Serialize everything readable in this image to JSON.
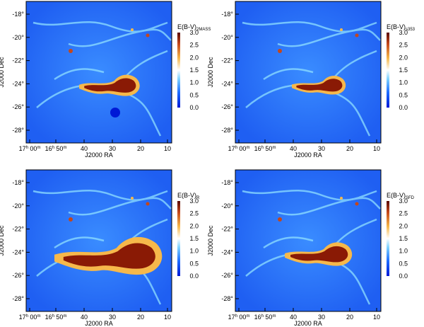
{
  "figure": {
    "panels": [
      {
        "id": "2mass",
        "label_main": "E(B-V)",
        "label_sub": "2MASS"
      },
      {
        "id": "s353",
        "label_main": "E(B-V)",
        "label_sub": "s353"
      },
      {
        "id": "r",
        "label_main": "E(B-V)",
        "label_sub": "R"
      },
      {
        "id": "sfd",
        "label_main": "E(B-V)",
        "label_sub": "SFD"
      }
    ],
    "xlabel": "J2000 RA",
    "ylabel": "J2000 Dec",
    "xticks": [
      {
        "h": "17",
        "hu": "h",
        "m": "00",
        "mu": "m"
      },
      {
        "h": "16",
        "hu": "h",
        "m": "50",
        "mu": "m"
      },
      {
        "v": "40"
      },
      {
        "v": "30"
      },
      {
        "v": "20"
      },
      {
        "v": "10"
      }
    ],
    "yticks": [
      "-18°",
      "-20°",
      "-22°",
      "-24°",
      "-26°",
      "-28°"
    ],
    "colorbar": {
      "ticks": [
        "3.0",
        "2.5",
        "2.0",
        "1.5",
        "1.0",
        "0.5",
        "0.0"
      ],
      "range": [
        0.0,
        3.0
      ],
      "colors": [
        "#0019d6",
        "#1f6dff",
        "#7fd2ff",
        "#ffffff",
        "#f6b84b",
        "#c5471a",
        "#5a0a02"
      ]
    }
  }
}
